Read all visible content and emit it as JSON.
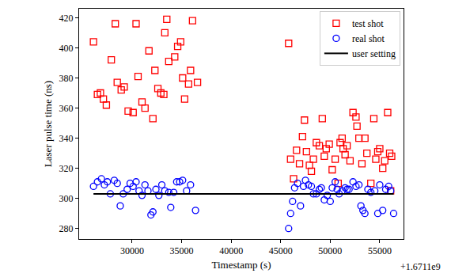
{
  "chart_data": {
    "type": "scatter",
    "x_label": "Timestamp (s)",
    "y_label": "Laser pulse time (ns)",
    "annotation": "+1.6711e9",
    "xlim": [
      24650,
      57400
    ],
    "xticks": [
      30000,
      35000,
      40000,
      45000,
      50000,
      55000
    ],
    "ylim": [
      273,
      426
    ],
    "yticks": [
      280,
      300,
      320,
      340,
      360,
      380,
      400,
      420
    ],
    "grid": false,
    "legend": "upper right",
    "series": [
      {
        "name": "test shot",
        "type": "scatter",
        "color": "#ff0000",
        "marker": "square-open",
        "x": [
          26100,
          26500,
          26800,
          27100,
          27400,
          27900,
          28300,
          28500,
          28900,
          29200,
          29600,
          30100,
          30400,
          30600,
          31000,
          31300,
          31700,
          32100,
          32300,
          32600,
          32900,
          33200,
          33300,
          33500,
          33700,
          34300,
          34600,
          34900,
          35100,
          35300,
          35700,
          35900,
          36100,
          36600,
          45800,
          46000,
          46300,
          46600,
          46900,
          47200,
          47400,
          47600,
          47900,
          48100,
          48300,
          48600,
          48900,
          49200,
          49400,
          49600,
          49900,
          50200,
          50500,
          50800,
          51000,
          51200,
          51300,
          51500,
          51700,
          52000,
          52300,
          52600,
          52700,
          52900,
          53200,
          53500,
          53700,
          54100,
          54400,
          54600,
          54800,
          55000,
          55300,
          55500,
          55800,
          56000,
          56200,
          56100
        ],
        "values": [
          404,
          369,
          370,
          366,
          362,
          392,
          416,
          377,
          372,
          374,
          358,
          357,
          416,
          381,
          364,
          360,
          398,
          353,
          385,
          373,
          370,
          369,
          410,
          419,
          391,
          394,
          401,
          404,
          380,
          366,
          376,
          385,
          418,
          377,
          403,
          326,
          313,
          332,
          323,
          341,
          352,
          331,
          322,
          318,
          326,
          337,
          335,
          353,
          328,
          333,
          336,
          319,
          326,
          310,
          337,
          340,
          333,
          329,
          335,
          325,
          357,
          354,
          348,
          340,
          323,
          340,
          330,
          310,
          353,
          326,
          331,
          333,
          320,
          325,
          357,
          330,
          328,
          305
        ]
      },
      {
        "name": "real shot",
        "type": "scatter",
        "color": "#0000ff",
        "marker": "circle-open",
        "x": [
          26100,
          26500,
          26900,
          27200,
          27500,
          27800,
          28200,
          28500,
          28800,
          29100,
          29500,
          29800,
          30100,
          30400,
          30700,
          31000,
          31300,
          31600,
          31900,
          32100,
          32400,
          32700,
          33000,
          33300,
          33700,
          33900,
          34200,
          34500,
          34800,
          35100,
          35500,
          35900,
          36400,
          45800,
          46000,
          46200,
          46400,
          46700,
          47000,
          47300,
          47500,
          47800,
          48100,
          48300,
          48600,
          48900,
          49100,
          49400,
          49700,
          50000,
          50200,
          50500,
          50700,
          50900,
          51200,
          51500,
          51700,
          51900,
          52300,
          52600,
          52900,
          53100,
          53300,
          53500,
          53800,
          54100,
          54500,
          54800,
          55000,
          55300,
          55600,
          55900,
          56100,
          56400
        ],
        "values": [
          308,
          311,
          313,
          309,
          311,
          303,
          312,
          310,
          295,
          303,
          306,
          310,
          308,
          311,
          305,
          302,
          309,
          305,
          289,
          291,
          306,
          302,
          309,
          305,
          304,
          294,
          304,
          311,
          311,
          312,
          305,
          309,
          292,
          280,
          290,
          298,
          307,
          310,
          295,
          308,
          312,
          309,
          308,
          303,
          303,
          306,
          307,
          299,
          302,
          298,
          307,
          311,
          306,
          303,
          305,
          307,
          306,
          306,
          311,
          308,
          309,
          295,
          292,
          290,
          306,
          304,
          305,
          290,
          309,
          292,
          306,
          308,
          305,
          290
        ]
      },
      {
        "name": "user setting",
        "type": "line",
        "color": "#000000",
        "line_style": "solid",
        "x": [
          26100,
          56400
        ],
        "values": [
          303,
          303
        ]
      }
    ]
  }
}
